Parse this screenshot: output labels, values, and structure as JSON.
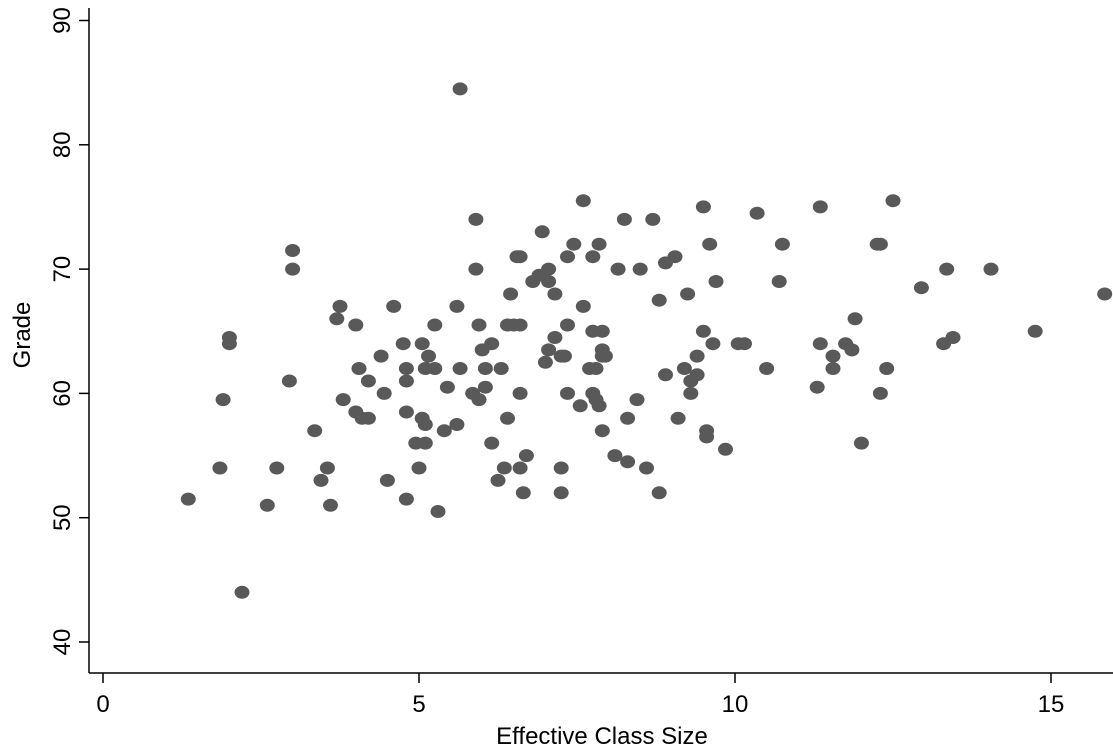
{
  "chart_data": {
    "type": "scatter",
    "title": "",
    "xlabel": "Effective Class Size",
    "ylabel": "Grade",
    "xlim": [
      0,
      16
    ],
    "ylim": [
      40,
      90
    ],
    "xticks": [
      0,
      5,
      10,
      15
    ],
    "yticks": [
      40,
      50,
      60,
      70,
      80,
      90
    ],
    "grid": false,
    "legend": "none",
    "marker_color": "#595959",
    "series": [
      {
        "points": [
          [
            1.35,
            51.5
          ],
          [
            1.85,
            54
          ],
          [
            1.9,
            59.5
          ],
          [
            2.0,
            64.5
          ],
          [
            2.0,
            64
          ],
          [
            2.2,
            44
          ],
          [
            2.6,
            51
          ],
          [
            2.75,
            54
          ],
          [
            2.95,
            61
          ],
          [
            3.0,
            71.5
          ],
          [
            3.0,
            70
          ],
          [
            3.35,
            57
          ],
          [
            3.45,
            53
          ],
          [
            3.55,
            54
          ],
          [
            3.6,
            51
          ],
          [
            3.7,
            66
          ],
          [
            3.75,
            67
          ],
          [
            3.8,
            59.5
          ],
          [
            4.0,
            65.5
          ],
          [
            4.0,
            58.5
          ],
          [
            4.05,
            62
          ],
          [
            4.1,
            58
          ],
          [
            4.2,
            61
          ],
          [
            4.2,
            58
          ],
          [
            4.4,
            63
          ],
          [
            4.45,
            60
          ],
          [
            4.5,
            53
          ],
          [
            4.6,
            67
          ],
          [
            4.75,
            64
          ],
          [
            4.8,
            62
          ],
          [
            4.8,
            61
          ],
          [
            4.8,
            58.5
          ],
          [
            4.8,
            51.5
          ],
          [
            4.95,
            56
          ],
          [
            5.0,
            54
          ],
          [
            5.05,
            64
          ],
          [
            5.05,
            58
          ],
          [
            5.1,
            62
          ],
          [
            5.1,
            57.5
          ],
          [
            5.1,
            56
          ],
          [
            5.15,
            63
          ],
          [
            5.25,
            62
          ],
          [
            5.25,
            65.5
          ],
          [
            5.3,
            50.5
          ],
          [
            5.4,
            57
          ],
          [
            5.45,
            60.5
          ],
          [
            5.6,
            67
          ],
          [
            5.6,
            57.5
          ],
          [
            5.65,
            62
          ],
          [
            5.65,
            84.5
          ],
          [
            5.85,
            60
          ],
          [
            5.9,
            74
          ],
          [
            5.9,
            70
          ],
          [
            5.95,
            65.5
          ],
          [
            5.95,
            59.5
          ],
          [
            6.0,
            63.5
          ],
          [
            6.05,
            62
          ],
          [
            6.05,
            60.5
          ],
          [
            6.15,
            64
          ],
          [
            6.15,
            56
          ],
          [
            6.25,
            53
          ],
          [
            6.3,
            62
          ],
          [
            6.35,
            54
          ],
          [
            6.4,
            58
          ],
          [
            6.4,
            65.5
          ],
          [
            6.45,
            68
          ],
          [
            6.5,
            65.5
          ],
          [
            6.55,
            71
          ],
          [
            6.6,
            71
          ],
          [
            6.6,
            65.5
          ],
          [
            6.6,
            60
          ],
          [
            6.6,
            54
          ],
          [
            6.65,
            52
          ],
          [
            6.7,
            55
          ],
          [
            6.8,
            69
          ],
          [
            6.9,
            69.5
          ],
          [
            6.95,
            73
          ],
          [
            7.0,
            62.5
          ],
          [
            7.05,
            70
          ],
          [
            7.05,
            69
          ],
          [
            7.05,
            63.5
          ],
          [
            7.15,
            68
          ],
          [
            7.15,
            64.5
          ],
          [
            7.25,
            63
          ],
          [
            7.25,
            54
          ],
          [
            7.25,
            52
          ],
          [
            7.3,
            63
          ],
          [
            7.35,
            71
          ],
          [
            7.35,
            65.5
          ],
          [
            7.35,
            60
          ],
          [
            7.45,
            72
          ],
          [
            7.55,
            59
          ],
          [
            7.6,
            67
          ],
          [
            7.6,
            75.5
          ],
          [
            7.7,
            62
          ],
          [
            7.75,
            71
          ],
          [
            7.75,
            65
          ],
          [
            7.75,
            60
          ],
          [
            7.8,
            62
          ],
          [
            7.8,
            59.5
          ],
          [
            7.85,
            59
          ],
          [
            7.85,
            72
          ],
          [
            7.9,
            63.5
          ],
          [
            7.9,
            63
          ],
          [
            7.9,
            65
          ],
          [
            7.9,
            57
          ],
          [
            7.95,
            63
          ],
          [
            8.1,
            55
          ],
          [
            8.15,
            70
          ],
          [
            8.25,
            74
          ],
          [
            8.3,
            58
          ],
          [
            8.3,
            54.5
          ],
          [
            8.45,
            59.5
          ],
          [
            8.5,
            70
          ],
          [
            8.6,
            54
          ],
          [
            8.7,
            74
          ],
          [
            8.8,
            67.5
          ],
          [
            8.8,
            52
          ],
          [
            8.9,
            70.5
          ],
          [
            8.9,
            61.5
          ],
          [
            9.05,
            71
          ],
          [
            9.1,
            58
          ],
          [
            9.2,
            62
          ],
          [
            9.25,
            68
          ],
          [
            9.3,
            60
          ],
          [
            9.3,
            61
          ],
          [
            9.4,
            63
          ],
          [
            9.4,
            61.5
          ],
          [
            9.5,
            75
          ],
          [
            9.5,
            65
          ],
          [
            9.55,
            57
          ],
          [
            9.55,
            56.5
          ],
          [
            9.6,
            72
          ],
          [
            9.65,
            64
          ],
          [
            9.7,
            69
          ],
          [
            9.85,
            55.5
          ],
          [
            10.05,
            64
          ],
          [
            10.15,
            64
          ],
          [
            10.35,
            74.5
          ],
          [
            10.5,
            62
          ],
          [
            10.7,
            69
          ],
          [
            10.75,
            72
          ],
          [
            11.3,
            60.5
          ],
          [
            11.35,
            64
          ],
          [
            11.35,
            75
          ],
          [
            11.55,
            63
          ],
          [
            11.55,
            62
          ],
          [
            11.75,
            64
          ],
          [
            11.85,
            63.5
          ],
          [
            11.9,
            66
          ],
          [
            12.0,
            56
          ],
          [
            12.25,
            72
          ],
          [
            12.3,
            72
          ],
          [
            12.3,
            60
          ],
          [
            12.4,
            62
          ],
          [
            12.5,
            75.5
          ],
          [
            12.95,
            68.5
          ],
          [
            13.3,
            64
          ],
          [
            13.35,
            70
          ],
          [
            13.45,
            64.5
          ],
          [
            14.05,
            70
          ],
          [
            14.75,
            65
          ],
          [
            15.85,
            68
          ]
        ]
      }
    ]
  }
}
